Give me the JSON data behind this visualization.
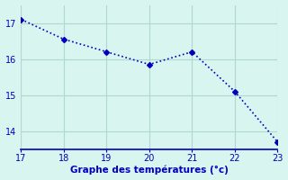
{
  "x": [
    17,
    18,
    19,
    20,
    21,
    22,
    23
  ],
  "y": [
    17.1,
    16.55,
    16.2,
    15.85,
    16.2,
    15.1,
    13.7
  ],
  "xlabel": "Graphe des températures (°c)",
  "xlim": [
    17,
    23
  ],
  "ylim": [
    13.5,
    17.5
  ],
  "xticks": [
    17,
    18,
    19,
    20,
    21,
    22,
    23
  ],
  "yticks": [
    14,
    15,
    16,
    17
  ],
  "line_color": "#0000bb",
  "marker": "D",
  "marker_size": 3,
  "bg_color": "#d8f5ef",
  "grid_color": "#b0d8d0",
  "axis_color": "#0000bb",
  "tick_label_color": "#0000bb",
  "xlabel_color": "#0000bb",
  "xlabel_fontsize": 7.5,
  "tick_fontsize": 7
}
